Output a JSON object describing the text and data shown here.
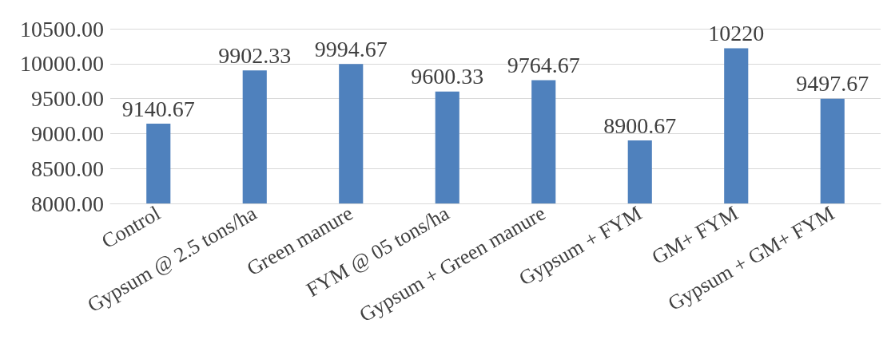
{
  "chart_data": {
    "type": "bar",
    "categories": [
      "Control",
      "Gypsum @ 2.5 tons/ha",
      "Green manure",
      "FYM @ 05 tons/ha",
      "Gypsum + Green manure",
      "Gypsum + FYM",
      "GM+ FYM",
      "Gypsum + GM+ FYM"
    ],
    "values": [
      9140.67,
      9902.33,
      9994.67,
      9600.33,
      9764.67,
      8900.67,
      10220,
      9497.67
    ],
    "color": "#4f81bd",
    "data_labels": true,
    "grid": "y",
    "ylim": [
      8000,
      10500
    ],
    "yticks": [
      {
        "value": 8000,
        "label": "8000.00"
      },
      {
        "value": 8500,
        "label": "8500.00"
      },
      {
        "value": 9000,
        "label": "9000.00"
      },
      {
        "value": 9500,
        "label": "9500.00"
      },
      {
        "value": 10000,
        "label": "10000.00"
      },
      {
        "value": 10500,
        "label": "10500.00"
      }
    ]
  }
}
